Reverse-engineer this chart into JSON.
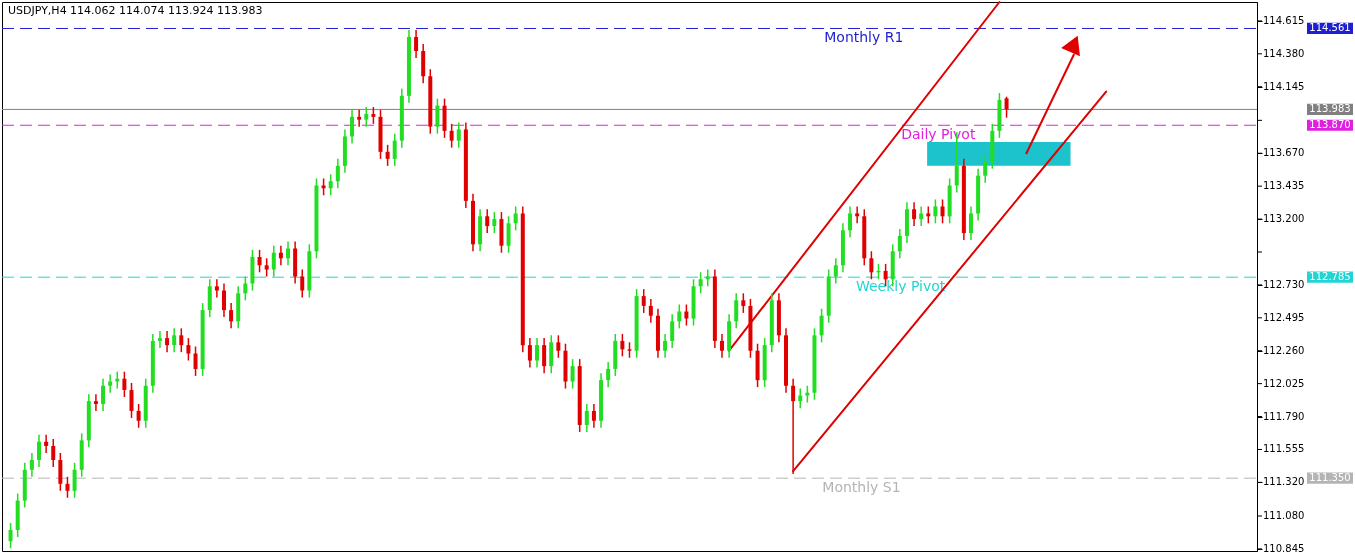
{
  "chart_data": {
    "type": "candlestick",
    "title": "USDJPY,H4  114.062 114.074 113.924 113.983",
    "categories": [
      null,
      null,
      null,
      null,
      null,
      null,
      null,
      null,
      null,
      null,
      null,
      null,
      null,
      null,
      null,
      null,
      null,
      null,
      null,
      null,
      null,
      null,
      null,
      null,
      null,
      null,
      null,
      null,
      null,
      null,
      null,
      null,
      null,
      null,
      null,
      null,
      null,
      null,
      null,
      null,
      null,
      null,
      null,
      null,
      null,
      null,
      null,
      null,
      null,
      null,
      null,
      null,
      null,
      null,
      null,
      null,
      null,
      null,
      null,
      null,
      null,
      null,
      null,
      null,
      null,
      null,
      null,
      null,
      null,
      null,
      null,
      null,
      null,
      null,
      null,
      null,
      null,
      null,
      null,
      null,
      null,
      null,
      null,
      null,
      null,
      null,
      null,
      null,
      null,
      null,
      null,
      null,
      null,
      null,
      null,
      null,
      null,
      null,
      null,
      null,
      null,
      null,
      null,
      null,
      null,
      null,
      null,
      null,
      null,
      null,
      null,
      null,
      null,
      null,
      null,
      null,
      null,
      null,
      null,
      null,
      null,
      null,
      null,
      null,
      null,
      null,
      null,
      null,
      null,
      null,
      null,
      null,
      null,
      null,
      null,
      null,
      null,
      null,
      null,
      null,
      null,
      null,
      null,
      null,
      null,
      null,
      null,
      null,
      null,
      null,
      null,
      null,
      null,
      null,
      null,
      null,
      null,
      null,
      null,
      null,
      null,
      null,
      null,
      null,
      null,
      null,
      null,
      null,
      null,
      null,
      null,
      null,
      null,
      null,
      null
    ],
    "ohlc": [
      [
        110.9,
        111.03,
        110.85,
        110.98
      ],
      [
        110.98,
        111.24,
        110.93,
        111.19
      ],
      [
        111.19,
        111.46,
        111.14,
        111.41
      ],
      [
        111.41,
        111.53,
        111.36,
        111.48
      ],
      [
        111.48,
        111.66,
        111.43,
        111.61
      ],
      [
        111.61,
        111.66,
        111.53,
        111.58
      ],
      [
        111.58,
        111.63,
        111.43,
        111.48
      ],
      [
        111.48,
        111.53,
        111.26,
        111.31
      ],
      [
        111.31,
        111.36,
        111.21,
        111.26
      ],
      [
        111.26,
        111.46,
        111.21,
        111.41
      ],
      [
        111.41,
        111.67,
        111.36,
        111.62
      ],
      [
        111.62,
        111.95,
        111.57,
        111.9
      ],
      [
        111.9,
        111.95,
        111.83,
        111.88
      ],
      [
        111.88,
        112.06,
        111.83,
        112.01
      ],
      [
        112.01,
        112.09,
        111.96,
        112.04
      ],
      [
        112.04,
        112.11,
        111.99,
        112.06
      ],
      [
        112.06,
        112.11,
        111.93,
        111.98
      ],
      [
        111.98,
        112.03,
        111.78,
        111.83
      ],
      [
        111.83,
        111.88,
        111.71,
        111.76
      ],
      [
        111.76,
        112.06,
        111.71,
        112.01
      ],
      [
        112.01,
        112.38,
        111.96,
        112.33
      ],
      [
        112.33,
        112.4,
        112.28,
        112.35
      ],
      [
        112.35,
        112.4,
        112.25,
        112.3
      ],
      [
        112.3,
        112.42,
        112.25,
        112.37
      ],
      [
        112.37,
        112.42,
        112.25,
        112.3
      ],
      [
        112.3,
        112.35,
        112.19,
        112.24
      ],
      [
        112.24,
        112.29,
        112.08,
        112.13
      ],
      [
        112.13,
        112.6,
        112.08,
        112.55
      ],
      [
        112.55,
        112.77,
        112.5,
        112.72
      ],
      [
        112.72,
        112.77,
        112.64,
        112.69
      ],
      [
        112.69,
        112.74,
        112.5,
        112.55
      ],
      [
        112.55,
        112.6,
        112.42,
        112.47
      ],
      [
        112.47,
        112.72,
        112.42,
        112.67
      ],
      [
        112.67,
        112.79,
        112.62,
        112.74
      ],
      [
        112.74,
        112.98,
        112.69,
        112.93
      ],
      [
        112.93,
        112.98,
        112.82,
        112.87
      ],
      [
        112.87,
        112.92,
        112.79,
        112.84
      ],
      [
        112.84,
        113.01,
        112.79,
        112.96
      ],
      [
        112.96,
        113.01,
        112.87,
        112.92
      ],
      [
        112.92,
        113.04,
        112.87,
        112.99
      ],
      [
        112.99,
        113.04,
        112.74,
        112.79
      ],
      [
        112.79,
        112.84,
        112.64,
        112.69
      ],
      [
        112.69,
        113.02,
        112.64,
        112.97
      ],
      [
        112.97,
        113.49,
        112.92,
        113.44
      ],
      [
        113.44,
        113.49,
        113.37,
        113.42
      ],
      [
        113.42,
        113.52,
        113.37,
        113.47
      ],
      [
        113.47,
        113.63,
        113.42,
        113.58
      ],
      [
        113.58,
        113.84,
        113.53,
        113.79
      ],
      [
        113.79,
        113.98,
        113.74,
        113.93
      ],
      [
        113.93,
        113.98,
        113.86,
        113.91
      ],
      [
        113.91,
        114.0,
        113.86,
        113.95
      ],
      [
        113.95,
        114.0,
        113.88,
        113.93
      ],
      [
        113.93,
        113.98,
        113.63,
        113.68
      ],
      [
        113.68,
        113.73,
        113.58,
        113.63
      ],
      [
        113.63,
        113.81,
        113.58,
        113.76
      ],
      [
        113.76,
        114.13,
        113.71,
        114.08
      ],
      [
        114.08,
        114.55,
        114.03,
        114.5
      ],
      [
        114.5,
        114.55,
        114.35,
        114.4
      ],
      [
        114.4,
        114.45,
        114.17,
        114.22
      ],
      [
        114.22,
        114.27,
        113.81,
        113.86
      ],
      [
        113.86,
        114.06,
        113.81,
        114.01
      ],
      [
        114.01,
        114.06,
        113.78,
        113.83
      ],
      [
        113.83,
        113.88,
        113.71,
        113.76
      ],
      [
        113.76,
        113.89,
        113.71,
        113.84
      ],
      [
        113.84,
        113.89,
        113.28,
        113.33
      ],
      [
        113.33,
        113.38,
        112.97,
        113.02
      ],
      [
        113.02,
        113.27,
        112.97,
        113.22
      ],
      [
        113.22,
        113.27,
        113.1,
        113.15
      ],
      [
        113.15,
        113.25,
        113.1,
        113.2
      ],
      [
        113.2,
        113.25,
        112.96,
        113.01
      ],
      [
        113.01,
        113.22,
        112.96,
        113.17
      ],
      [
        113.17,
        113.29,
        113.12,
        113.24
      ],
      [
        113.24,
        113.29,
        112.25,
        112.3
      ],
      [
        112.3,
        112.35,
        112.14,
        112.19
      ],
      [
        112.19,
        112.35,
        112.14,
        112.3
      ],
      [
        112.3,
        112.35,
        112.1,
        112.15
      ],
      [
        112.15,
        112.37,
        112.1,
        112.32
      ],
      [
        112.32,
        112.37,
        112.21,
        112.26
      ],
      [
        112.26,
        112.31,
        111.99,
        112.04
      ],
      [
        112.04,
        112.2,
        111.99,
        112.15
      ],
      [
        112.15,
        112.2,
        111.68,
        111.73
      ],
      [
        111.73,
        111.88,
        111.68,
        111.83
      ],
      [
        111.83,
        111.88,
        111.71,
        111.76
      ],
      [
        111.76,
        112.1,
        111.71,
        112.05
      ],
      [
        112.05,
        112.18,
        112.0,
        112.13
      ],
      [
        112.13,
        112.38,
        112.08,
        112.33
      ],
      [
        112.33,
        112.38,
        112.22,
        112.27
      ],
      [
        112.27,
        112.32,
        112.21,
        112.26
      ],
      [
        112.26,
        112.7,
        112.21,
        112.65
      ],
      [
        112.65,
        112.7,
        112.53,
        112.58
      ],
      [
        112.58,
        112.63,
        112.46,
        112.51
      ],
      [
        112.51,
        112.56,
        112.21,
        112.26
      ],
      [
        112.26,
        112.38,
        112.21,
        112.33
      ],
      [
        112.33,
        112.52,
        112.28,
        112.47
      ],
      [
        112.47,
        112.59,
        112.42,
        112.54
      ],
      [
        112.54,
        112.59,
        112.44,
        112.49
      ],
      [
        112.49,
        112.77,
        112.44,
        112.72
      ],
      [
        112.72,
        112.82,
        112.67,
        112.77
      ],
      [
        112.77,
        112.84,
        112.72,
        112.79
      ],
      [
        112.79,
        112.84,
        112.28,
        112.33
      ],
      [
        112.33,
        112.38,
        112.21,
        112.26
      ],
      [
        112.26,
        112.52,
        112.21,
        112.47
      ],
      [
        112.47,
        112.67,
        112.42,
        112.62
      ],
      [
        112.62,
        112.67,
        112.53,
        112.58
      ],
      [
        112.58,
        112.63,
        112.21,
        112.26
      ],
      [
        112.26,
        112.31,
        112.0,
        112.05
      ],
      [
        112.05,
        112.35,
        112.0,
        112.3
      ],
      [
        112.3,
        112.67,
        112.25,
        112.62
      ],
      [
        112.62,
        112.67,
        112.32,
        112.37
      ],
      [
        112.37,
        112.42,
        111.96,
        112.01
      ],
      [
        112.01,
        112.06,
        111.38,
        111.9
      ],
      [
        111.9,
        111.99,
        111.85,
        111.94
      ],
      [
        111.94,
        112.01,
        111.89,
        111.96
      ],
      [
        111.96,
        112.42,
        111.91,
        112.37
      ],
      [
        112.37,
        112.56,
        112.32,
        112.51
      ],
      [
        112.51,
        112.84,
        112.46,
        112.79
      ],
      [
        112.79,
        112.92,
        112.74,
        112.87
      ],
      [
        112.87,
        113.17,
        112.82,
        113.12
      ],
      [
        113.12,
        113.29,
        113.07,
        113.24
      ],
      [
        113.24,
        113.29,
        113.17,
        113.22
      ],
      [
        113.22,
        113.27,
        112.87,
        112.92
      ],
      [
        112.92,
        112.97,
        112.77,
        112.82
      ],
      [
        112.82,
        112.88,
        112.77,
        112.83
      ],
      [
        112.83,
        112.88,
        112.72,
        112.77
      ],
      [
        112.77,
        113.02,
        112.72,
        112.97
      ],
      [
        112.97,
        113.13,
        112.92,
        113.08
      ],
      [
        113.08,
        113.32,
        113.03,
        113.27
      ],
      [
        113.27,
        113.32,
        113.15,
        113.2
      ],
      [
        113.2,
        113.29,
        113.15,
        113.24
      ],
      [
        113.24,
        113.29,
        113.17,
        113.22
      ],
      [
        113.22,
        113.34,
        113.17,
        113.29
      ],
      [
        113.29,
        113.34,
        113.17,
        113.22
      ],
      [
        113.22,
        113.49,
        113.17,
        113.44
      ],
      [
        113.44,
        113.82,
        113.39,
        113.58
      ],
      [
        113.58,
        113.63,
        113.05,
        113.1
      ],
      [
        113.1,
        113.29,
        113.05,
        113.24
      ],
      [
        113.24,
        113.56,
        113.19,
        113.51
      ],
      [
        113.51,
        113.66,
        113.46,
        113.61
      ],
      [
        113.61,
        113.88,
        113.56,
        113.83
      ],
      [
        113.83,
        114.1,
        113.78,
        114.05
      ],
      [
        114.062,
        114.074,
        113.924,
        113.983
      ],
      null,
      null,
      null,
      null,
      null,
      null,
      null,
      null,
      null,
      null,
      null,
      null,
      null,
      null,
      null,
      null,
      null,
      null,
      null,
      null,
      null,
      null,
      null,
      null,
      null,
      null,
      null,
      null,
      null,
      null,
      null,
      null,
      null,
      null
    ],
    "series": [
      {
        "type": "line",
        "color": "#e00000",
        "values": [
          null,
          null,
          null,
          null,
          null,
          null,
          null,
          null,
          null,
          null,
          null,
          null,
          null,
          null,
          null,
          null,
          null,
          null,
          null,
          null,
          null,
          null,
          null,
          null,
          null,
          null,
          null,
          null,
          null,
          null,
          null,
          null,
          null,
          null,
          null,
          null,
          null,
          null,
          null,
          null,
          null,
          null,
          null,
          null,
          null,
          null,
          null,
          null,
          null,
          null,
          null,
          null,
          null,
          null,
          null,
          null,
          null,
          null,
          null,
          null,
          null,
          null,
          null,
          null,
          null,
          null,
          null,
          null,
          null,
          null,
          null,
          null,
          null,
          null,
          null,
          null,
          null,
          null,
          null,
          null,
          null,
          null,
          null,
          null,
          null,
          null,
          null,
          null,
          null,
          null,
          null,
          null,
          null,
          null,
          null,
          null,
          null,
          null,
          null,
          null,
          null,
          112.26,
          null,
          null,
          null,
          null,
          null,
          null,
          null,
          null,
          null,
          null,
          null,
          null,
          null,
          null,
          null,
          null,
          null,
          null,
          null,
          null,
          null,
          null,
          null,
          null,
          null,
          null,
          null,
          null,
          null,
          null,
          null,
          null,
          null,
          null,
          null,
          null,
          null,
          114.75,
          null,
          null,
          null,
          null,
          null,
          null,
          null,
          null,
          null,
          null,
          null,
          null,
          null,
          null,
          null,
          null,
          null,
          null,
          null,
          null,
          null,
          null,
          null,
          null,
          null,
          null,
          null,
          null,
          null,
          null,
          null,
          null,
          null,
          null,
          null
        ]
      },
      {
        "type": "line",
        "color": "#e00000",
        "values": [
          null,
          null,
          null,
          null,
          null,
          null,
          null,
          null,
          null,
          null,
          null,
          null,
          null,
          null,
          null,
          null,
          null,
          null,
          null,
          null,
          null,
          null,
          null,
          null,
          null,
          null,
          null,
          null,
          null,
          null,
          null,
          null,
          null,
          null,
          null,
          null,
          null,
          null,
          null,
          null,
          null,
          null,
          null,
          null,
          null,
          null,
          null,
          null,
          null,
          null,
          null,
          null,
          null,
          null,
          null,
          null,
          null,
          null,
          null,
          null,
          null,
          null,
          null,
          null,
          null,
          null,
          null,
          null,
          null,
          null,
          null,
          null,
          null,
          null,
          null,
          null,
          null,
          null,
          null,
          null,
          null,
          null,
          null,
          null,
          null,
          null,
          null,
          null,
          null,
          null,
          null,
          null,
          null,
          null,
          null,
          null,
          null,
          null,
          null,
          null,
          null,
          null,
          null,
          null,
          null,
          null,
          null,
          null,
          null,
          null,
          111.4,
          null,
          null,
          null,
          null,
          null,
          null,
          null,
          null,
          null,
          null,
          null,
          null,
          null,
          null,
          null,
          null,
          null,
          null,
          null,
          null,
          null,
          null,
          null,
          null,
          null,
          null,
          null,
          null,
          null,
          null,
          null,
          null,
          null,
          null,
          null,
          null,
          null,
          null,
          null,
          null,
          null,
          null,
          null,
          114.11,
          null,
          null,
          null,
          null,
          null,
          null,
          null,
          null,
          null,
          null,
          null,
          null,
          null,
          null,
          null,
          null,
          null,
          null,
          null,
          null
        ]
      }
    ],
    "ylim": [
      110.83,
      114.75
    ],
    "yticks": [
      110.845,
      {
        "value": 111.08,
        "label": "111.080"
      },
      {
        "value": 111.32,
        "label": "111.320"
      },
      111.555,
      {
        "value": 111.79,
        "label": "111.790"
      },
      112.025,
      {
        "value": 112.26,
        "label": "112.260"
      },
      112.495,
      {
        "value": 112.73,
        "label": "112.730"
      },
      {
        "value": 112.965,
        "label": null
      },
      {
        "value": 113.2,
        "label": "113.200"
      },
      113.435,
      {
        "value": 113.67,
        "label": "113.670"
      },
      {
        "value": 113.905,
        "label": null
      },
      114.145,
      {
        "value": 114.38,
        "label": "114.380"
      },
      114.615
    ],
    "annotations": [
      "114.561",
      "113.983",
      "113.870",
      "112.785",
      "111.350"
    ],
    "ref_lines": [
      {
        "axis": "y",
        "value": 114.561,
        "label": "Monthly R1",
        "color": "#1f1fd0",
        "line_style": "dashed"
      },
      {
        "axis": "y",
        "value": 113.983,
        "label": null,
        "color": "#808080",
        "line_style": "solid"
      },
      {
        "axis": "y",
        "value": 113.87,
        "label": "Daily Pivot",
        "color": "#e020e0",
        "line_style": "dashed"
      },
      {
        "axis": "y",
        "value": 112.785,
        "label": "Weekly Pivot",
        "color": "#22d4d4",
        "line_style": "dashed"
      },
      {
        "axis": "y",
        "value": 111.35,
        "label": "Monthly S1",
        "color": "#b4b4b4",
        "line_style": "dashed"
      }
    ],
    "bands": [
      {
        "axis": "y",
        "from": 113.58,
        "to": 113.75,
        "label": null,
        "color": "#1cc3cc"
      }
    ]
  }
}
